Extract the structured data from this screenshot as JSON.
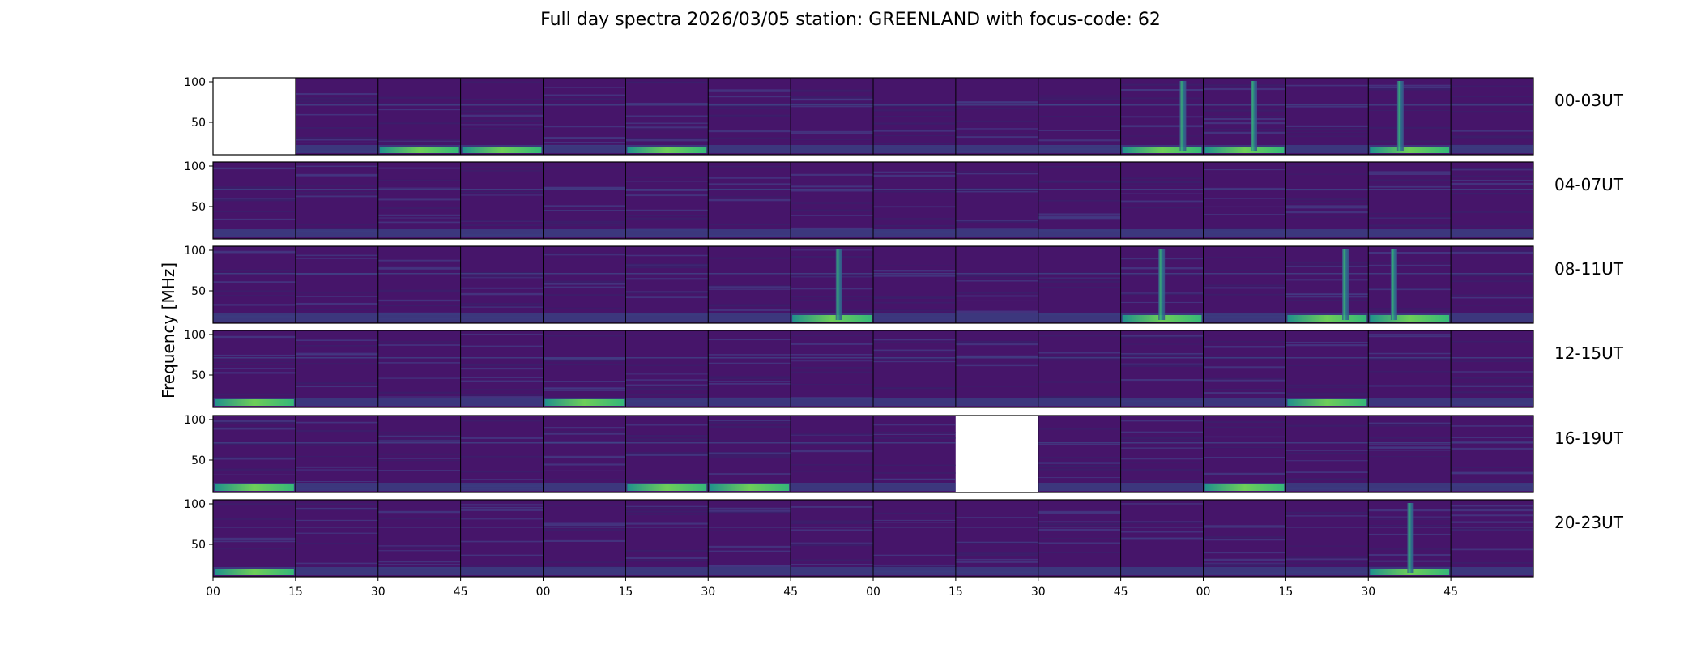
{
  "chart_data": {
    "type": "heatmap",
    "title": "Full day spectra 2026/03/05 station: GREENLAND with focus-code: 62",
    "ylabel": "Frequency [MHz]",
    "ylim": [
      10,
      105
    ],
    "yticks": [
      100,
      50
    ],
    "colormap": "viridis",
    "xticks": [
      "00",
      "15",
      "30",
      "45",
      "00",
      "15",
      "30",
      "45",
      "00",
      "15",
      "30",
      "45",
      "00",
      "15",
      "30",
      "45"
    ],
    "panels_per_row": 16,
    "rows": [
      {
        "label": "00-03UT",
        "missing": [
          0
        ],
        "hot": [
          2,
          3,
          5,
          11,
          12,
          14
        ],
        "bursts": [
          11,
          12,
          14
        ]
      },
      {
        "label": "04-07UT",
        "missing": [],
        "hot": [],
        "bursts": []
      },
      {
        "label": "08-11UT",
        "missing": [],
        "hot": [
          7,
          11,
          13,
          14
        ],
        "bursts": [
          7,
          11,
          13,
          14
        ]
      },
      {
        "label": "12-15UT",
        "missing": [],
        "hot": [
          0,
          4,
          13
        ],
        "bursts": []
      },
      {
        "label": "16-19UT",
        "missing": [
          9
        ],
        "hot": [
          0,
          5,
          6,
          12
        ],
        "bursts": []
      },
      {
        "label": "20-23UT",
        "missing": [],
        "hot": [
          0,
          14
        ],
        "bursts": [
          14
        ]
      }
    ]
  }
}
